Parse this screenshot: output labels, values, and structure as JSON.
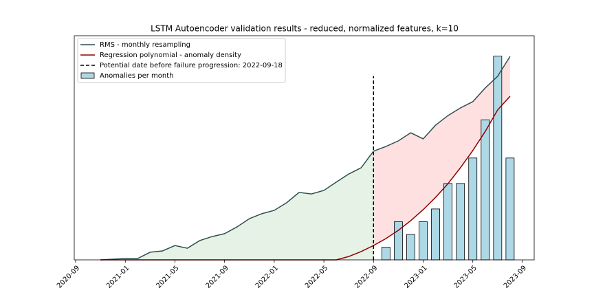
{
  "chart_data": {
    "type": "line",
    "title": "LSTM Autoencoder validation results - reduced, normalized features, k=10",
    "x": [
      "2020-11",
      "2020-12",
      "2021-01",
      "2021-02",
      "2021-03",
      "2021-04",
      "2021-05",
      "2021-06",
      "2021-07",
      "2021-08",
      "2021-09",
      "2021-10",
      "2021-11",
      "2021-12",
      "2022-01",
      "2022-02",
      "2022-03",
      "2022-04",
      "2022-05",
      "2022-06",
      "2022-07",
      "2022-08",
      "2022-09",
      "2022-10",
      "2022-11",
      "2022-12",
      "2023-01",
      "2023-02",
      "2023-03",
      "2023-04",
      "2023-05",
      "2023-06",
      "2023-07",
      "2023-08"
    ],
    "series": [
      {
        "name": "RMS - monthly resampling",
        "color": "#2f4f4f",
        "values": [
          0,
          0.003,
          0.006,
          0.006,
          0.034,
          0.04,
          0.064,
          0.052,
          0.086,
          0.104,
          0.117,
          0.147,
          0.184,
          0.206,
          0.221,
          0.255,
          0.301,
          0.294,
          0.31,
          0.347,
          0.383,
          0.411,
          0.485,
          0.506,
          0.531,
          0.567,
          0.54,
          0.601,
          0.644,
          0.678,
          0.706,
          0.767,
          0.819,
          0.908
        ]
      },
      {
        "name": "Regression polynomial - anomaly density",
        "color": "#8b0000",
        "values": [
          0,
          0,
          0,
          0,
          0,
          0,
          0,
          0,
          0,
          0,
          0,
          0,
          0,
          0,
          0,
          0,
          0,
          0,
          0,
          0,
          0.015,
          0.037,
          0.064,
          0.095,
          0.132,
          0.175,
          0.224,
          0.279,
          0.34,
          0.411,
          0.488,
          0.573,
          0.669,
          0.73
        ]
      }
    ],
    "vline": {
      "name": "Potential date before failure progression: 2022-09-18",
      "x": "2022-09",
      "ymax": 0.82,
      "color": "#000000"
    },
    "bars": {
      "name": "Anomalies per month",
      "color": "#add8e6",
      "axis": "y2",
      "x": [
        "2022-10",
        "2022-11",
        "2022-12",
        "2023-01",
        "2023-02",
        "2023-03",
        "2023-04",
        "2023-05",
        "2023-06",
        "2023-07",
        "2023-08"
      ],
      "values": [
        1,
        3,
        2,
        3,
        4,
        6,
        6,
        8,
        11,
        16,
        8
      ]
    },
    "fills": {
      "before": "#e5f2e5",
      "after": "#ffe0e0"
    },
    "xlim": [
      "2020-09",
      "2023-10"
    ],
    "xticks": [
      "2020-09",
      "2021-01",
      "2021-05",
      "2021-09",
      "2022-01",
      "2022-05",
      "2022-09",
      "2023-01",
      "2023-05",
      "2023-09"
    ],
    "ylim": [
      0,
      1
    ],
    "y2lim": [
      0,
      17.6
    ],
    "legend": "upper left"
  }
}
